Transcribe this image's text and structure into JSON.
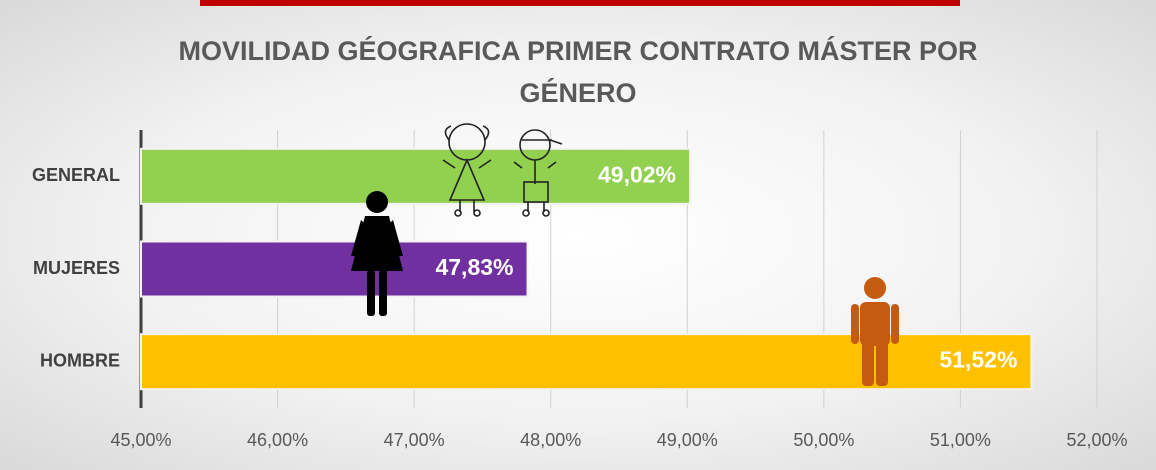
{
  "chart_data": {
    "type": "bar",
    "orientation": "horizontal",
    "title": "MOVILIDAD GÉOGRAFICA PRIMER CONTRATO MÁSTER POR GÉNERO",
    "categories": [
      "GENERAL",
      "MUJERES",
      "HOMBRE"
    ],
    "values": [
      49.02,
      47.83,
      51.52
    ],
    "value_labels": [
      "49,02%",
      "47,83%",
      "51,52%"
    ],
    "colors": [
      "#92d050",
      "#7030a0",
      "#ffc000"
    ],
    "xlim": [
      45,
      52
    ],
    "xticks": [
      {
        "value": 45,
        "label": "45,00%"
      },
      {
        "value": 46,
        "label": "46,00%"
      },
      {
        "value": 47,
        "label": "47,00%"
      },
      {
        "value": 48,
        "label": "48,00%"
      },
      {
        "value": 49,
        "label": "49,00%"
      },
      {
        "value": 50,
        "label": "50,00%"
      },
      {
        "value": 51,
        "label": "51,00%"
      },
      {
        "value": 52,
        "label": "52,00%"
      }
    ],
    "grid": true
  }
}
